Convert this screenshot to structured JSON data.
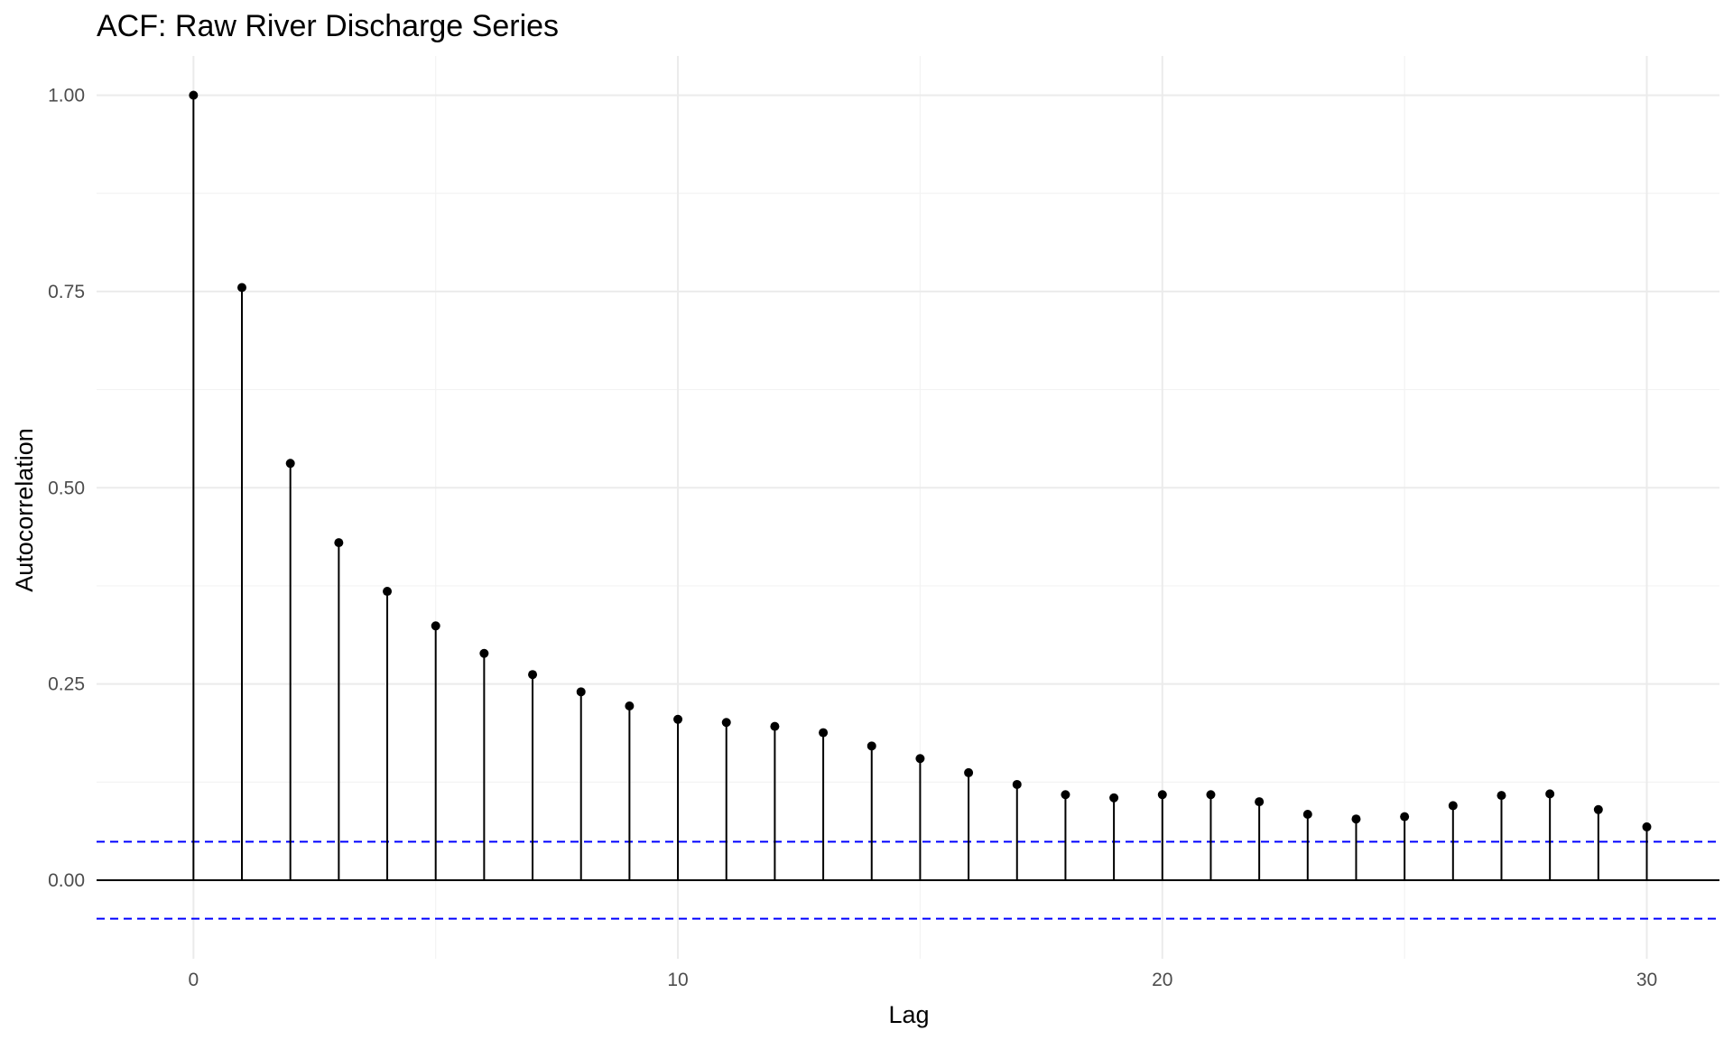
{
  "chart_data": {
    "type": "bar",
    "subtype": "acf-lollipop",
    "title": "ACF: Raw River Discharge Series",
    "xlabel": "Lag",
    "ylabel": "Autocorrelation",
    "x": [
      0,
      1,
      2,
      3,
      4,
      5,
      6,
      7,
      8,
      9,
      10,
      11,
      12,
      13,
      14,
      15,
      16,
      17,
      18,
      19,
      20,
      21,
      22,
      23,
      24,
      25,
      26,
      27,
      28,
      29,
      30
    ],
    "values": [
      1.0,
      0.755,
      0.531,
      0.43,
      0.368,
      0.324,
      0.289,
      0.262,
      0.24,
      0.222,
      0.205,
      0.201,
      0.196,
      0.188,
      0.171,
      0.155,
      0.137,
      0.122,
      0.109,
      0.105,
      0.109,
      0.109,
      0.1,
      0.084,
      0.078,
      0.081,
      0.095,
      0.108,
      0.11,
      0.09,
      0.068
    ],
    "confidence_bounds": [
      -0.049,
      0.049
    ],
    "xlim": [
      -2,
      31.5
    ],
    "ylim": [
      -0.1,
      1.05
    ],
    "x_ticks": [
      0,
      10,
      20,
      30
    ],
    "x_tick_labels": [
      "0",
      "10",
      "20",
      "30"
    ],
    "y_ticks": [
      0,
      0.25,
      0.5,
      0.75,
      1.0
    ],
    "y_tick_labels": [
      "0.00",
      "0.25",
      "0.50",
      "0.75",
      "1.00"
    ],
    "grid": true,
    "legend": "none",
    "colors": {
      "stem": "#000000",
      "point": "#000000",
      "zero_line": "#000000",
      "bounds": "#0000ff",
      "grid": "#ebebeb"
    }
  }
}
